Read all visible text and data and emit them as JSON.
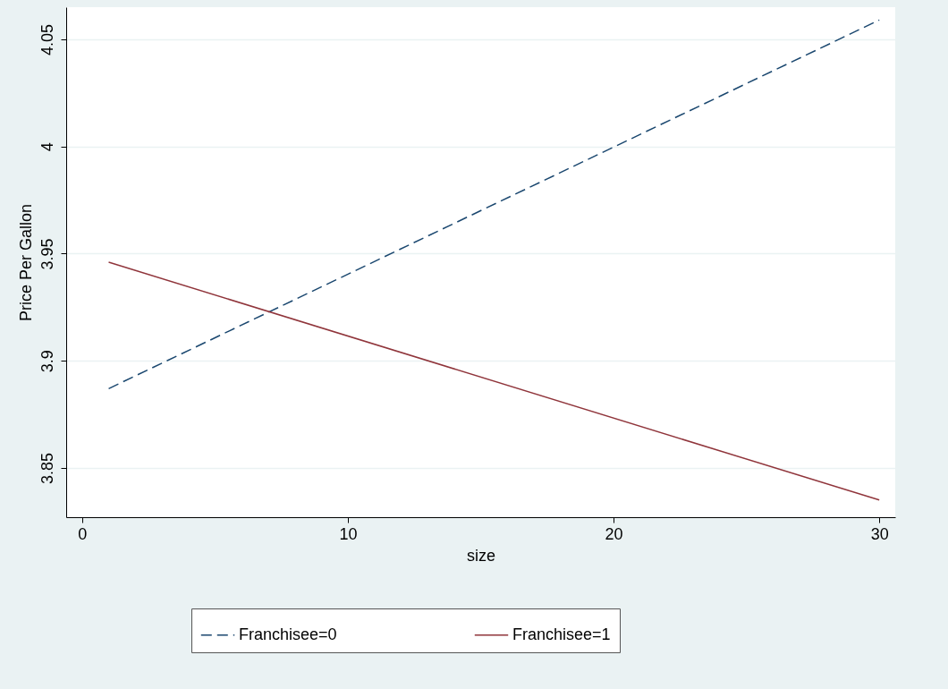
{
  "chart_data": {
    "type": "line",
    "xlabel": "size",
    "ylabel": "Price Per Gallon",
    "x": [
      1,
      30
    ],
    "series": [
      {
        "name": "Franchisee=0",
        "color": "#1a476f",
        "line_style": "dashed",
        "values": [
          3.887,
          4.059
        ]
      },
      {
        "name": "Franchisee=1",
        "color": "#90353b",
        "line_style": "solid",
        "values": [
          3.946,
          3.835
        ]
      }
    ],
    "xlim": [
      -0.6,
      30.6
    ],
    "ylim": [
      3.827,
      4.065
    ],
    "xticks": [
      0,
      10,
      20,
      30
    ],
    "yticks": [
      3.85,
      3.9,
      3.95,
      4,
      4.05
    ],
    "grid": "y",
    "legend": "bottom",
    "marker": "none"
  }
}
